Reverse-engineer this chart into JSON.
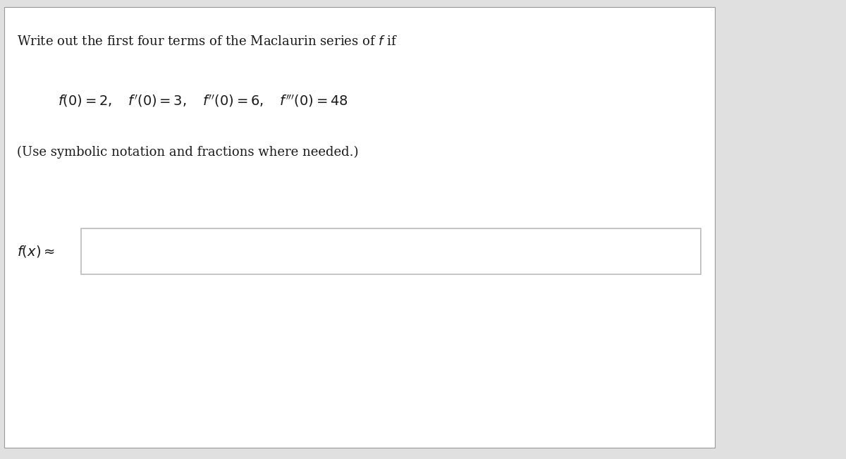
{
  "title_text": "Write out the first four terms of the Maclaurin series of $f$ if",
  "conditions_text": "$f(0) = 2, \\quad f(0) = 3, \\quad f(0) = 6, \\quad f(0) = 48$",
  "note_text": "(Use symbolic notation and fractions where needed.)",
  "label_text": "$f(x) \\approx$",
  "bg_color": "#ffffff",
  "outer_bg_color": "#e0e0e0",
  "box_color": "#bbbbbb",
  "title_fontsize": 13,
  "conditions_fontsize": 14,
  "note_fontsize": 13,
  "label_fontsize": 14,
  "fig_width": 12.0,
  "fig_height": 6.51
}
